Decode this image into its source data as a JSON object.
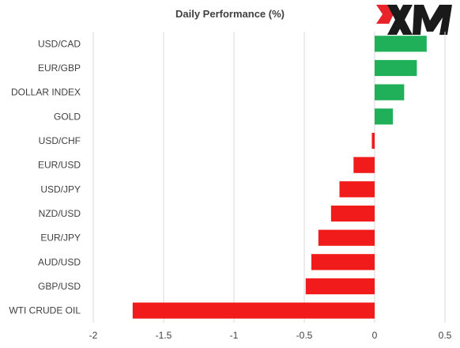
{
  "chart_data": {
    "type": "bar",
    "orientation": "horizontal",
    "title": "Daily Performance (%)",
    "categories": [
      "USD/CAD",
      "EUR/GBP",
      "DOLLAR INDEX",
      "GOLD",
      "USD/CHF",
      "EUR/USD",
      "USD/JPY",
      "NZD/USD",
      "EUR/JPY",
      "AUD/USD",
      "GBP/USD",
      "WTI CRUDE OIL"
    ],
    "values": [
      0.37,
      0.3,
      0.21,
      0.13,
      -0.02,
      -0.15,
      -0.25,
      -0.31,
      -0.4,
      -0.45,
      -0.49,
      -1.72
    ],
    "xlim": [
      -2,
      0.5
    ],
    "xticks": [
      "-2",
      "-1.5",
      "-1",
      "-0.5",
      "0",
      "0.5"
    ],
    "xtick_values": [
      -2,
      -1.5,
      -1,
      -0.5,
      0,
      0.5
    ],
    "grid": "vertical",
    "colors": {
      "positive": "#21b05a",
      "negative": "#f21b1b",
      "grid": "#d9d9d9",
      "text": "#404040"
    }
  },
  "logo": {
    "text": "XM",
    "colors": {
      "accent": "#e8232a",
      "dark": "#1a1a1a"
    }
  }
}
